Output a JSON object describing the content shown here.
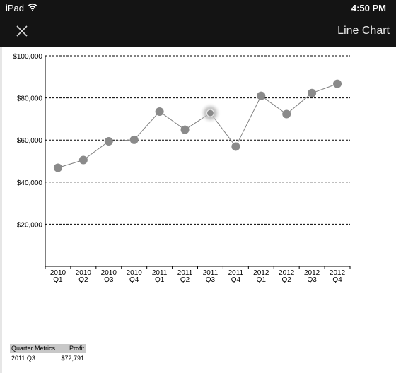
{
  "status_bar": {
    "device": "iPad",
    "time": "4:50 PM"
  },
  "nav": {
    "title": "Line Chart",
    "close_icon": "close-icon"
  },
  "chart_data": {
    "type": "line",
    "categories": [
      "2010 Q1",
      "2010 Q2",
      "2010 Q3",
      "2010 Q4",
      "2011 Q1",
      "2011 Q2",
      "2011 Q3",
      "2011 Q4",
      "2012 Q1",
      "2012 Q2",
      "2012 Q3",
      "2012 Q4"
    ],
    "category_lines": [
      [
        "2010",
        "Q1"
      ],
      [
        "2010",
        "Q2"
      ],
      [
        "2010",
        "Q3"
      ],
      [
        "2010",
        "Q4"
      ],
      [
        "2011",
        "Q1"
      ],
      [
        "2011",
        "Q2"
      ],
      [
        "2011",
        "Q3"
      ],
      [
        "2011",
        "Q4"
      ],
      [
        "2012",
        "Q1"
      ],
      [
        "2012",
        "Q2"
      ],
      [
        "2012",
        "Q3"
      ],
      [
        "2012",
        "Q4"
      ]
    ],
    "series": [
      {
        "values": [
          46800,
          50500,
          59400,
          60100,
          73500,
          64900,
          72791,
          56900,
          81000,
          72300,
          82300,
          86700
        ]
      }
    ],
    "selected_index": 6,
    "ylim": [
      0,
      100000
    ],
    "yticks": [
      20000,
      40000,
      60000,
      80000,
      100000
    ],
    "ytick_labels": [
      "$20,000",
      "$40,000",
      "$60,000",
      "$80,000",
      "$100,000"
    ],
    "grid": "dashed horizontal",
    "colors": {
      "line": "#808080",
      "marker": "#8a8a8a",
      "highlight": "#bdbdbd"
    }
  },
  "table": {
    "headers": [
      "Quarter Metrics",
      "Profit"
    ],
    "rows": [
      [
        "2011 Q3",
        "$72,791"
      ]
    ]
  }
}
